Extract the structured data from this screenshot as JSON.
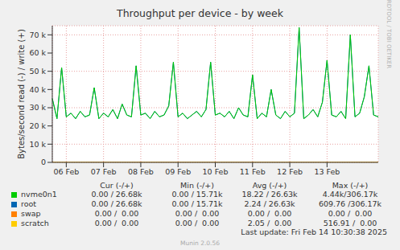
{
  "chart_data": {
    "type": "line",
    "title": "Throughput per device - by week",
    "y_label": "Bytes/second read (-) / write (+)",
    "categories": [
      null,
      null,
      null,
      "06 Feb",
      null,
      null,
      null,
      null,
      null,
      null,
      null,
      "07 Feb",
      null,
      null,
      null,
      null,
      null,
      null,
      null,
      "08 Feb",
      null,
      null,
      null,
      null,
      null,
      null,
      null,
      "09 Feb",
      null,
      null,
      null,
      null,
      null,
      null,
      null,
      "10 Feb",
      null,
      null,
      null,
      null,
      null,
      null,
      null,
      "11 Feb",
      null,
      null,
      null,
      null,
      null,
      null,
      null,
      "12 Feb",
      null,
      null,
      null,
      null,
      null,
      null,
      null,
      "13 Feb",
      null,
      null,
      null,
      null,
      null,
      null,
      null,
      null,
      null,
      null,
      null
    ],
    "series": [
      {
        "name": "nvme0n1",
        "color": "#00cc00",
        "values": [
          35000,
          24000,
          52000,
          25000,
          27000,
          24000,
          28000,
          25000,
          26000,
          41000,
          24000,
          27000,
          25000,
          29000,
          24000,
          32000,
          26000,
          25000,
          53000,
          26000,
          27000,
          24000,
          28000,
          25000,
          26000,
          31000,
          55000,
          25000,
          27000,
          24000,
          26000,
          28000,
          25000,
          29000,
          55000,
          26000,
          27000,
          25000,
          28000,
          24000,
          30000,
          26000,
          25000,
          48000,
          24000,
          27000,
          25000,
          40000,
          26000,
          24000,
          28000,
          25000,
          27000,
          74000,
          24000,
          26000,
          29000,
          25000,
          33000,
          56000,
          26000,
          25000,
          28000,
          24000,
          70000,
          25000,
          27000,
          36000,
          53000,
          26000,
          25000
        ]
      },
      {
        "name": "root",
        "color": "#0066b3",
        "values": [
          35000,
          24000,
          52000,
          25000,
          27000,
          24000,
          28000,
          25000,
          26000,
          41000,
          24000,
          27000,
          25000,
          29000,
          24000,
          32000,
          26000,
          25000,
          53000,
          26000,
          27000,
          24000,
          28000,
          25000,
          26000,
          31000,
          55000,
          25000,
          27000,
          24000,
          26000,
          28000,
          25000,
          29000,
          55000,
          26000,
          27000,
          25000,
          28000,
          24000,
          30000,
          26000,
          25000,
          48000,
          24000,
          27000,
          25000,
          40000,
          26000,
          24000,
          28000,
          25000,
          27000,
          74000,
          24000,
          26000,
          29000,
          25000,
          33000,
          56000,
          26000,
          25000,
          28000,
          24000,
          70000,
          25000,
          27000,
          36000,
          53000,
          26000,
          25000
        ]
      },
      {
        "name": "swap",
        "color": "#ff8000",
        "values": [
          0,
          0,
          0,
          0,
          0,
          0,
          0,
          0,
          0,
          0,
          0,
          0,
          0,
          0,
          0,
          0,
          0,
          0,
          0,
          0,
          0,
          0,
          0,
          0,
          0,
          0,
          0,
          0,
          0,
          0,
          0,
          0,
          0,
          0,
          0,
          0,
          0,
          0,
          0,
          0,
          0,
          0,
          0,
          0,
          0,
          0,
          0,
          0,
          0,
          0,
          0,
          0,
          0,
          0,
          0,
          0,
          0,
          0,
          0,
          0,
          0,
          0,
          0,
          0,
          0,
          0,
          0,
          0,
          0,
          0,
          0
        ]
      },
      {
        "name": "scratch",
        "color": "#ffcc00",
        "values": [
          0,
          0,
          0,
          0,
          0,
          0,
          0,
          0,
          0,
          0,
          0,
          0,
          0,
          0,
          0,
          0,
          0,
          0,
          0,
          0,
          0,
          0,
          0,
          0,
          0,
          0,
          0,
          0,
          0,
          0,
          0,
          0,
          0,
          0,
          0,
          0,
          0,
          0,
          0,
          0,
          0,
          0,
          0,
          0,
          0,
          0,
          0,
          0,
          0,
          0,
          0,
          0,
          0,
          0,
          0,
          0,
          0,
          0,
          0,
          0,
          0,
          0,
          0,
          0,
          0,
          0,
          0,
          0,
          0,
          0,
          0
        ]
      }
    ],
    "ylim": [
      0,
      75000
    ],
    "yticks": [
      0,
      {
        "value": 10000,
        "label": "10 k"
      },
      {
        "value": 20000,
        "label": "20 k"
      },
      {
        "value": 30000,
        "label": "30 k"
      },
      {
        "value": 40000,
        "label": "40 k"
      },
      {
        "value": 50000,
        "label": "50 k"
      },
      {
        "value": 60000,
        "label": "60 k"
      },
      {
        "value": 70000,
        "label": "70 k"
      }
    ],
    "grid": true,
    "stats_headers": [
      "Cur (-/+)",
      "Min (-/+)",
      "Avg (-/+)",
      "Max (-/+)"
    ],
    "stats": [
      [
        "0.00 / 26.68k",
        "0.00 / 15.71k",
        "18.22 / 26.63k",
        "4.44k/306.17k"
      ],
      [
        "0.00 / 26.68k",
        "0.00 / 15.71k",
        "2.24 / 26.63k",
        "609.76 /306.17k"
      ],
      [
        "0.00 /  0.00",
        "0.00 /  0.00",
        "0.00 /  0.00",
        "0.00 /  0.00"
      ],
      [
        "0.00 /  0.00",
        "0.00 /  0.00",
        "2.05 /  0.00",
        "516.91 /  0.00"
      ]
    ],
    "last_update": "Last update: Fri Feb 14 10:30:38 2025",
    "version": "Munin 2.0.56",
    "watermark": "RRDTOOL / TOBI OETIKER"
  }
}
